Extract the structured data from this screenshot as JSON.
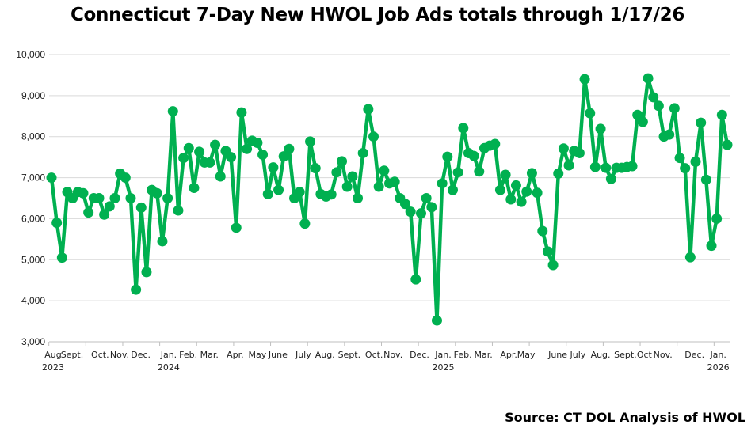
{
  "chart_data": {
    "type": "line",
    "title": "Connecticut 7-Day New HWOL Job Ads totals through 1/17/26",
    "source": "Source: CT DOL Analysis of HWOL",
    "ylim": [
      3000,
      10000
    ],
    "yticks": [
      "3,000",
      "4,000",
      "5,000",
      "6,000",
      "7,000",
      "8,000",
      "9,000",
      "10,000"
    ],
    "ytick_values": [
      3000,
      4000,
      5000,
      6000,
      7000,
      8000,
      9000,
      10000
    ],
    "grid": true,
    "color": "#00B050",
    "x_labels": [
      {
        "index": 0.3,
        "label": "Aug",
        "year": "2023"
      },
      {
        "index": 3.9,
        "label": "Sept."
      },
      {
        "index": 9.2,
        "label": "Oct."
      },
      {
        "index": 12.9,
        "label": "Nov."
      },
      {
        "index": 16.9,
        "label": "Dec."
      },
      {
        "index": 22.2,
        "label": "Jan.",
        "year": "2024"
      },
      {
        "index": 25.9,
        "label": "Feb."
      },
      {
        "index": 29.9,
        "label": "Mar."
      },
      {
        "index": 34.8,
        "label": "Apr."
      },
      {
        "index": 39,
        "label": "May"
      },
      {
        "index": 42.9,
        "label": "June"
      },
      {
        "index": 47.7,
        "label": "July"
      },
      {
        "index": 51.8,
        "label": "Aug."
      },
      {
        "index": 56.4,
        "label": "Sept."
      },
      {
        "index": 61.1,
        "label": "Oct."
      },
      {
        "index": 64.7,
        "label": "Nov."
      },
      {
        "index": 69.7,
        "label": "Dec."
      },
      {
        "index": 74.2,
        "label": "Jan.",
        "year": "2025"
      },
      {
        "index": 77.9,
        "label": "Feb."
      },
      {
        "index": 81.8,
        "label": "Mar."
      },
      {
        "index": 86.6,
        "label": "Apr."
      },
      {
        "index": 89.9,
        "label": "May"
      },
      {
        "index": 95.9,
        "label": "June"
      },
      {
        "index": 99.7,
        "label": "July"
      },
      {
        "index": 104,
        "label": "Aug."
      },
      {
        "index": 108.7,
        "label": "Sept."
      },
      {
        "index": 112.3,
        "label": "Oct"
      },
      {
        "index": 115.8,
        "label": "Nov."
      },
      {
        "index": 121.8,
        "label": "Dec."
      },
      {
        "index": 126.3,
        "label": "Jan.",
        "year": "2026"
      }
    ],
    "values": [
      7000,
      5900,
      5050,
      6650,
      6500,
      6650,
      6620,
      6150,
      6500,
      6500,
      6100,
      6300,
      6500,
      7100,
      7000,
      6500,
      4270,
      6270,
      4700,
      6700,
      6620,
      5450,
      6500,
      8620,
      6200,
      7480,
      7720,
      6750,
      7630,
      7370,
      7370,
      7800,
      7030,
      7650,
      7500,
      5780,
      8590,
      7700,
      7900,
      7850,
      7560,
      6600,
      7250,
      6700,
      7520,
      7700,
      6500,
      6650,
      5880,
      7880,
      7230,
      6600,
      6540,
      6590,
      7130,
      7400,
      6780,
      7030,
      6500,
      7600,
      8670,
      8000,
      6780,
      7170,
      6860,
      6900,
      6500,
      6360,
      6170,
      4520,
      6130,
      6500,
      6280,
      3520,
      6860,
      7510,
      6700,
      7130,
      8210,
      7600,
      7530,
      7150,
      7720,
      7780,
      7820,
      6700,
      7070,
      6470,
      6810,
      6410,
      6660,
      7110,
      6630,
      5700,
      5200,
      4870,
      7100,
      7710,
      7300,
      7650,
      7600,
      9400,
      8570,
      7260,
      8190,
      7240,
      6970,
      7240,
      7240,
      7260,
      7280,
      8530,
      8360,
      9420,
      8960,
      8750,
      8000,
      8050,
      8690,
      7480,
      7230,
      5060,
      7390,
      8340,
      6950,
      5340,
      6000,
      8530,
      7800
    ]
  }
}
